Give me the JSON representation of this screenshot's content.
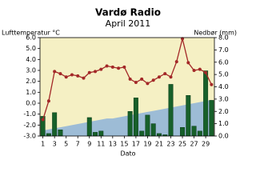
{
  "chart_data": {
    "type": "combo",
    "title": "Vardø Radio",
    "subtitle": "April 2011",
    "ylabel": "Lufttemperatur °C",
    "y2label": "Nedbør (mm)",
    "xlabel": "Dato",
    "x": [
      1,
      2,
      3,
      4,
      5,
      6,
      7,
      8,
      9,
      10,
      11,
      12,
      13,
      14,
      15,
      16,
      17,
      18,
      19,
      20,
      21,
      22,
      23,
      24,
      25,
      26,
      27,
      28,
      29,
      30
    ],
    "xlim": [
      0.5,
      30.5
    ],
    "xticks": [
      1,
      3,
      5,
      7,
      9,
      11,
      13,
      15,
      17,
      19,
      21,
      23,
      25,
      27,
      29
    ],
    "ylim": [
      -3,
      6
    ],
    "yticks": [
      {
        "value": 6,
        "label": "6.0"
      },
      {
        "value": 5,
        "label": "5.0"
      },
      {
        "value": 4,
        "label": "4.0"
      },
      {
        "value": 3,
        "label": "3.0"
      },
      {
        "value": 2,
        "label": "2.0"
      },
      {
        "value": 1,
        "label": "1.0"
      },
      {
        "value": 0,
        "label": "0.0"
      },
      {
        "value": -1,
        "label": "-1.0"
      },
      {
        "value": -2,
        "label": "-2.0"
      },
      {
        "value": -3,
        "label": "-3.0"
      }
    ],
    "y2lim": [
      0,
      8
    ],
    "y2ticks": [
      {
        "value": 8,
        "label": "8.0"
      },
      {
        "value": 7,
        "label": "7.0"
      },
      {
        "value": 6,
        "label": "6.0"
      },
      {
        "value": 5,
        "label": "5.0"
      },
      {
        "value": 4,
        "label": "4.0"
      },
      {
        "value": 3,
        "label": "3.0"
      },
      {
        "value": 2,
        "label": "2.0"
      },
      {
        "value": 1,
        "label": "1.0"
      },
      {
        "value": 0,
        "label": "0.0"
      }
    ],
    "background": "#f5f0c4",
    "series": [
      {
        "type": "area",
        "color": "#9dbcd6",
        "values": [
          -2.5,
          -2.4,
          -2.3,
          -2.2,
          -2.1,
          -2.0,
          -1.9,
          -1.8,
          -1.7,
          -1.6,
          -1.5,
          -1.4,
          -1.4,
          -1.3,
          -1.2,
          -1.1,
          -1.0,
          -0.9,
          -0.8,
          -0.7,
          -0.6,
          -0.5,
          -0.4,
          -0.3,
          -0.2,
          -0.1,
          0.0,
          0.1,
          0.2,
          0.3
        ]
      },
      {
        "type": "bar",
        "axis": "y2",
        "color": "#17602a",
        "values": [
          1.6,
          0.2,
          1.9,
          0.5,
          0,
          0,
          0,
          0,
          1.5,
          0.3,
          0.4,
          0,
          0,
          0,
          0,
          2.0,
          3.1,
          0.4,
          1.7,
          1.0,
          0.2,
          0.1,
          4.2,
          0,
          0.7,
          3.3,
          0.8,
          0.4,
          5.3,
          2.9
        ]
      },
      {
        "type": "line",
        "color": "#a32828",
        "values": [
          -1.5,
          0.2,
          2.9,
          2.7,
          2.4,
          2.6,
          2.5,
          2.3,
          2.8,
          2.9,
          3.1,
          3.4,
          3.3,
          3.2,
          3.3,
          2.2,
          1.9,
          2.2,
          1.8,
          2.1,
          2.4,
          2.7,
          2.4,
          3.8,
          5.9,
          3.7,
          3.0,
          3.1,
          2.8,
          1.7
        ]
      }
    ]
  }
}
